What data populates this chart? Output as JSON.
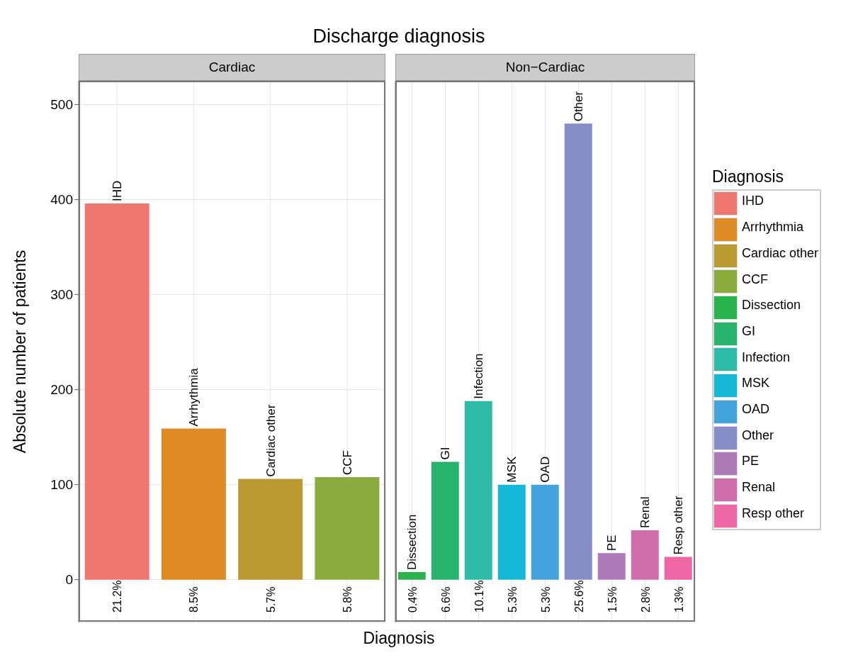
{
  "chart_data": [
    {
      "type": "bar",
      "title": "Discharge diagnosis",
      "subtitle": "Cardiac",
      "xlabel": "Diagnosis",
      "ylabel": "Absolute number of patients",
      "stacked": true,
      "grid": true,
      "legend": "right",
      "legend_title": "Diagnosis",
      "categories": [
        "21.2%",
        "8.5%",
        "5.7%",
        "5.8%"
      ],
      "series": [
        {
          "name": "IHD",
          "color": "#f07770",
          "values": [
            396,
            null,
            null,
            null
          ]
        },
        {
          "name": "Arrhythmia",
          "color": "#de8a26",
          "values": [
            null,
            159,
            null,
            null
          ]
        },
        {
          "name": "Cardiac other",
          "color": "#bb9b31",
          "values": [
            null,
            null,
            106,
            null
          ]
        },
        {
          "name": "CCF",
          "color": "#8cab3e",
          "values": [
            null,
            null,
            null,
            108
          ]
        }
      ],
      "ylim": [
        -45,
        525
      ],
      "yticks": [
        0,
        100,
        200,
        300,
        400,
        500
      ]
    },
    {
      "type": "bar",
      "subtitle": "Non−Cardiac",
      "stacked": true,
      "grid": true,
      "tick_labels": "x",
      "legend": "right",
      "categories": [
        "0.4%",
        "6.6%",
        "10.1%",
        "5.3%",
        "5.3%",
        "25.6%",
        "1.5%",
        "2.8%",
        "1.3%"
      ],
      "series": [
        {
          "name": "Dissection",
          "color": "#2bb34d",
          "values": [
            8,
            null,
            null,
            null,
            null,
            null,
            null,
            null,
            null
          ]
        },
        {
          "name": "GI",
          "color": "#28b36d",
          "values": [
            null,
            124,
            null,
            null,
            null,
            null,
            null,
            null,
            null
          ]
        },
        {
          "name": "Infection",
          "color": "#2dbba8",
          "values": [
            null,
            null,
            188,
            null,
            null,
            null,
            null,
            null,
            null
          ]
        },
        {
          "name": "MSK",
          "color": "#16b8d7",
          "values": [
            null,
            null,
            null,
            100,
            null,
            null,
            null,
            null,
            null
          ]
        },
        {
          "name": "OAD",
          "color": "#43a3dc",
          "values": [
            null,
            null,
            null,
            null,
            100,
            null,
            null,
            null,
            null
          ]
        },
        {
          "name": "Other",
          "color": "#878dc6",
          "values": [
            null,
            null,
            null,
            null,
            null,
            480,
            null,
            null,
            null
          ]
        },
        {
          "name": "PE",
          "color": "#ae7bb8",
          "values": [
            null,
            null,
            null,
            null,
            null,
            null,
            28,
            null,
            null
          ]
        },
        {
          "name": "Renal",
          "color": "#d06eab",
          "values": [
            null,
            null,
            null,
            null,
            null,
            null,
            null,
            52,
            null
          ]
        },
        {
          "name": "Resp other",
          "color": "#ef66a4",
          "values": [
            null,
            null,
            null,
            null,
            null,
            null,
            null,
            null,
            24
          ]
        }
      ],
      "ylim": [
        -45,
        525
      ],
      "yticks": [
        0,
        100,
        200,
        300,
        400,
        500
      ]
    }
  ]
}
